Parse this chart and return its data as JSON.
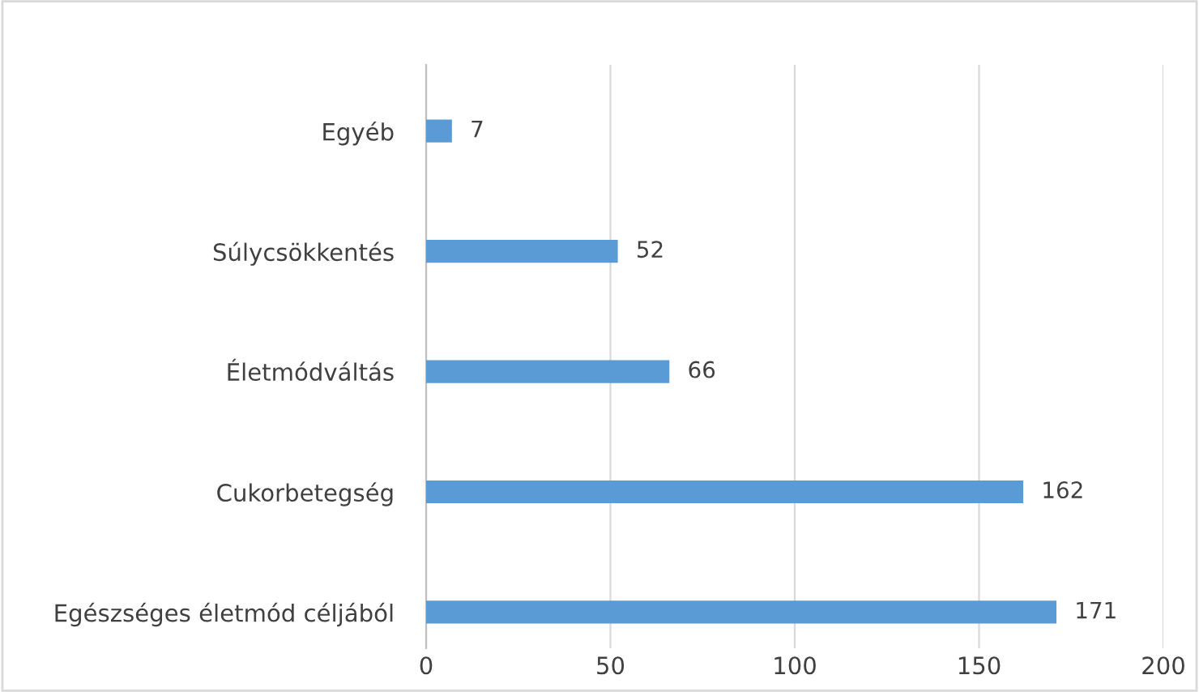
{
  "chart_data": {
    "type": "bar",
    "orientation": "horizontal",
    "categories": [
      "Egyéb",
      "Súlycsökkentés",
      "Életmódváltás",
      "Cukorbetegség",
      "Egészséges életmód céljából"
    ],
    "values": [
      7,
      52,
      66,
      162,
      171
    ],
    "color": "#5b9bd5",
    "xlim": [
      0,
      200
    ],
    "xticks": [
      0,
      50,
      100,
      150,
      200
    ],
    "grid": "x",
    "data_labels": true,
    "legend": false
  }
}
